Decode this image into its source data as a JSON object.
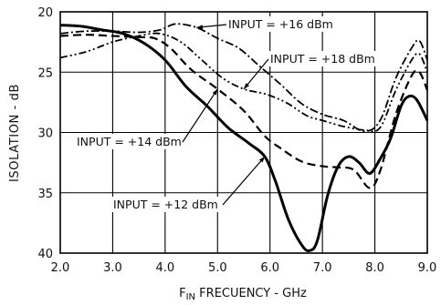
{
  "chart_data": {
    "type": "line",
    "xlabel": {
      "main": "F",
      "sub": "IN",
      "rest": " FRECUENCY - GHz"
    },
    "ylabel": "ISOLATION - dB",
    "xlim": [
      2.0,
      9.0
    ],
    "ylim": [
      20,
      40
    ],
    "y_inverted": true,
    "x_ticks": [
      "2.0",
      "3.0",
      "4.0",
      "5.0",
      "6.0",
      "7.0",
      "8.0",
      "9.0"
    ],
    "y_ticks": [
      "20",
      "25",
      "30",
      "35",
      "40"
    ],
    "grid": true,
    "series": [
      {
        "name": "INPUT = +16 dBm",
        "style": "dash-dot",
        "points": [
          [
            2.0,
            21.8
          ],
          [
            2.5,
            21.6
          ],
          [
            3.0,
            21.6
          ],
          [
            3.5,
            21.7
          ],
          [
            3.9,
            21.5
          ],
          [
            4.2,
            21.0
          ],
          [
            4.6,
            21.3
          ],
          [
            5.0,
            22.2
          ],
          [
            5.4,
            23.0
          ],
          [
            5.8,
            24.5
          ],
          [
            6.2,
            26.0
          ],
          [
            6.6,
            27.6
          ],
          [
            7.0,
            28.5
          ],
          [
            7.4,
            29.0
          ],
          [
            7.8,
            29.9
          ],
          [
            8.1,
            29.0
          ],
          [
            8.4,
            25.5
          ],
          [
            8.7,
            23.0
          ],
          [
            8.85,
            22.4
          ],
          [
            9.0,
            24.0
          ]
        ]
      },
      {
        "name": "INPUT = +18 dBm",
        "style": "dash-dot-dot",
        "points": [
          [
            2.0,
            23.8
          ],
          [
            2.5,
            23.3
          ],
          [
            3.0,
            22.5
          ],
          [
            3.5,
            22.0
          ],
          [
            3.9,
            21.8
          ],
          [
            4.3,
            22.5
          ],
          [
            4.7,
            24.0
          ],
          [
            5.1,
            25.5
          ],
          [
            5.5,
            26.4
          ],
          [
            5.9,
            26.8
          ],
          [
            6.3,
            27.5
          ],
          [
            6.7,
            28.6
          ],
          [
            7.0,
            29.0
          ],
          [
            7.4,
            29.5
          ],
          [
            7.8,
            29.8
          ],
          [
            8.1,
            29.6
          ],
          [
            8.4,
            26.5
          ],
          [
            8.7,
            24.0
          ],
          [
            8.85,
            23.5
          ],
          [
            9.0,
            25.0
          ]
        ]
      },
      {
        "name": "INPUT = +14 dBm",
        "style": "dash",
        "points": [
          [
            2.0,
            22.0
          ],
          [
            2.5,
            21.9
          ],
          [
            3.0,
            22.0
          ],
          [
            3.5,
            22.1
          ],
          [
            3.8,
            22.2
          ],
          [
            4.1,
            23.0
          ],
          [
            4.5,
            24.8
          ],
          [
            5.0,
            26.4
          ],
          [
            5.5,
            28.2
          ],
          [
            5.9,
            30.3
          ],
          [
            6.2,
            31.3
          ],
          [
            6.6,
            32.4
          ],
          [
            7.0,
            32.8
          ],
          [
            7.3,
            32.9
          ],
          [
            7.6,
            33.1
          ],
          [
            7.9,
            34.6
          ],
          [
            8.1,
            33.2
          ],
          [
            8.4,
            28.5
          ],
          [
            8.7,
            25.3
          ],
          [
            8.85,
            25.0
          ],
          [
            9.0,
            26.5
          ]
        ]
      },
      {
        "name": "INPUT = +12 dBm",
        "style": "solid",
        "points": [
          [
            2.0,
            21.1
          ],
          [
            2.4,
            21.2
          ],
          [
            2.8,
            21.5
          ],
          [
            3.2,
            21.8
          ],
          [
            3.6,
            22.6
          ],
          [
            4.0,
            24.0
          ],
          [
            4.4,
            26.2
          ],
          [
            4.8,
            27.8
          ],
          [
            5.2,
            29.6
          ],
          [
            5.6,
            30.9
          ],
          [
            5.9,
            32.0
          ],
          [
            6.1,
            34.0
          ],
          [
            6.35,
            37.2
          ],
          [
            6.6,
            39.3
          ],
          [
            6.75,
            39.8
          ],
          [
            6.9,
            39.0
          ],
          [
            7.1,
            35.2
          ],
          [
            7.3,
            32.8
          ],
          [
            7.5,
            32.0
          ],
          [
            7.7,
            32.5
          ],
          [
            7.9,
            33.4
          ],
          [
            8.1,
            32.2
          ],
          [
            8.3,
            30.5
          ],
          [
            8.5,
            27.8
          ],
          [
            8.65,
            27.0
          ],
          [
            8.8,
            27.3
          ],
          [
            9.0,
            29.0
          ]
        ]
      }
    ],
    "annotations": [
      {
        "text": "INPUT = +16 dBm",
        "series": "INPUT = +16 dBm"
      },
      {
        "text": "INPUT = +18 dBm",
        "series": "INPUT = +18 dBm"
      },
      {
        "text": "INPUT = +14 dBm",
        "series": "INPUT = +14 dBm"
      },
      {
        "text": "INPUT = +12 dBm",
        "series": "INPUT = +12 dBm"
      }
    ]
  }
}
